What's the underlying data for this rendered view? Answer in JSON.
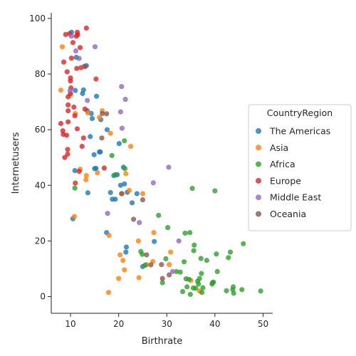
{
  "chart_data": {
    "type": "scatter",
    "xlabel": "Birthrate",
    "ylabel": "Internetusers",
    "xlim": [
      6,
      52
    ],
    "ylim": [
      -6,
      102
    ],
    "xticks": [
      10,
      20,
      30,
      40,
      50
    ],
    "yticks": [
      0,
      20,
      40,
      60,
      80,
      100
    ],
    "legend": {
      "title": "CountryRegion",
      "placement": "right"
    },
    "series": [
      {
        "name": "The Americas",
        "color": "#1f77b4",
        "points": [
          [
            10.2,
            95.0
          ],
          [
            10.5,
            28.0
          ],
          [
            10.9,
            45.3
          ],
          [
            11.2,
            86.0
          ],
          [
            11.0,
            74.1
          ],
          [
            12.5,
            73.0
          ],
          [
            12.7,
            74.3
          ],
          [
            13.3,
            83.0
          ],
          [
            13.5,
            66.8
          ],
          [
            13.6,
            37.3
          ],
          [
            14.1,
            57.5
          ],
          [
            14.3,
            65.8
          ],
          [
            14.5,
            64.0
          ],
          [
            14.9,
            51.0
          ],
          [
            15.0,
            46.0
          ],
          [
            15.3,
            46.1
          ],
          [
            15.4,
            72.0
          ],
          [
            16.0,
            52.0
          ],
          [
            16.2,
            52.0
          ],
          [
            16.3,
            63.6
          ],
          [
            17.5,
            23.0
          ],
          [
            17.6,
            60.0
          ],
          [
            18.3,
            37.4
          ],
          [
            18.7,
            35.0
          ],
          [
            19.0,
            43.5
          ],
          [
            19.3,
            35.0
          ],
          [
            19.7,
            43.8
          ],
          [
            20.1,
            55.0
          ],
          [
            20.4,
            40.0
          ],
          [
            21.0,
            46.5
          ],
          [
            21.2,
            40.5
          ],
          [
            21.5,
            16.0
          ],
          [
            21.6,
            17.8
          ],
          [
            21.8,
            37.5
          ],
          [
            22.8,
            33.7
          ],
          [
            23.8,
            37.0
          ],
          [
            25.0,
            10.8
          ],
          [
            27.4,
            19.8
          ]
        ]
      },
      {
        "name": "Asia",
        "color": "#ff7f0e",
        "points": [
          [
            8.0,
            74.2
          ],
          [
            8.3,
            89.8
          ],
          [
            10.0,
            72.5
          ],
          [
            10.8,
            28.8
          ],
          [
            11.0,
            65.8
          ],
          [
            12.0,
            45.8
          ],
          [
            13.2,
            42.0
          ],
          [
            13.3,
            43.5
          ],
          [
            13.6,
            66.0
          ],
          [
            15.6,
            44.5
          ],
          [
            16.0,
            64.4
          ],
          [
            16.6,
            66.8
          ],
          [
            17.9,
            1.5
          ],
          [
            18.0,
            22.0
          ],
          [
            18.3,
            58.7
          ],
          [
            20.0,
            6.5
          ],
          [
            20.3,
            15.0
          ],
          [
            20.7,
            37.0
          ],
          [
            20.9,
            13.0
          ],
          [
            21.2,
            9.6
          ],
          [
            21.5,
            44.2
          ],
          [
            22.2,
            38.2
          ],
          [
            22.5,
            54.0
          ],
          [
            24.1,
            20.0
          ],
          [
            24.2,
            6.8
          ],
          [
            25.0,
            37.0
          ],
          [
            25.8,
            11.5
          ],
          [
            27.1,
            12.6
          ],
          [
            27.3,
            23.0
          ],
          [
            30.5,
            11.5
          ],
          [
            30.8,
            16.0
          ],
          [
            35.0,
            5.8
          ],
          [
            36.8,
            2.0
          ]
        ]
      },
      {
        "name": "Africa",
        "color": "#2ca02c",
        "points": [
          [
            10.9,
            39.0
          ],
          [
            18.6,
            50.7
          ],
          [
            19.3,
            43.8
          ],
          [
            21.2,
            56.0
          ],
          [
            21.3,
            46.0
          ],
          [
            24.6,
            16.2
          ],
          [
            24.9,
            15.2
          ],
          [
            25.5,
            11.3
          ],
          [
            28.3,
            29.2
          ],
          [
            29.1,
            5.0
          ],
          [
            29.8,
            13.6
          ],
          [
            30.2,
            24.8
          ],
          [
            32.0,
            9.0
          ],
          [
            32.8,
            8.8
          ],
          [
            33.3,
            1.8
          ],
          [
            33.6,
            12.5
          ],
          [
            33.8,
            22.8
          ],
          [
            34.0,
            6.4
          ],
          [
            34.2,
            3.5
          ],
          [
            34.6,
            6.2
          ],
          [
            34.8,
            23.0
          ],
          [
            34.9,
            0.8
          ],
          [
            35.3,
            38.9
          ],
          [
            35.5,
            3.1
          ],
          [
            35.6,
            16.5
          ],
          [
            35.7,
            18.5
          ],
          [
            36.0,
            3.0
          ],
          [
            36.4,
            5.5
          ],
          [
            36.6,
            4.5
          ],
          [
            36.8,
            6.5
          ],
          [
            37.1,
            13.7
          ],
          [
            37.2,
            8.3
          ],
          [
            37.3,
            1.5
          ],
          [
            37.5,
            3.2
          ],
          [
            38.3,
            13.0
          ],
          [
            39.4,
            4.5
          ],
          [
            39.5,
            5.0
          ],
          [
            39.7,
            5.2
          ],
          [
            40.0,
            38.0
          ],
          [
            40.3,
            15.3
          ],
          [
            40.5,
            9.0
          ],
          [
            42.4,
            2.1
          ],
          [
            42.8,
            14.0
          ],
          [
            43.2,
            16.0
          ],
          [
            43.7,
            2.5
          ],
          [
            43.8,
            3.5
          ],
          [
            43.9,
            1.2
          ],
          [
            45.6,
            2.5
          ],
          [
            45.9,
            19.0
          ],
          [
            49.5,
            2.0
          ]
        ]
      },
      {
        "name": "Europe",
        "color": "#d62728",
        "points": [
          [
            8.0,
            62.2
          ],
          [
            8.4,
            59.6
          ],
          [
            8.5,
            58.3
          ],
          [
            8.6,
            84.3
          ],
          [
            8.8,
            50.0
          ],
          [
            9.0,
            94.2
          ],
          [
            9.2,
            58.0
          ],
          [
            9.3,
            80.8
          ],
          [
            9.4,
            52.9
          ],
          [
            9.4,
            51.2
          ],
          [
            9.5,
            68.9
          ],
          [
            9.5,
            66.8
          ],
          [
            9.5,
            62.8
          ],
          [
            9.5,
            71.8
          ],
          [
            9.8,
            94.5
          ],
          [
            10.0,
            73.0
          ],
          [
            10.0,
            78.6
          ],
          [
            10.0,
            77.5
          ],
          [
            10.1,
            75.0
          ],
          [
            10.2,
            85.7
          ],
          [
            10.5,
            91.3
          ],
          [
            10.7,
            68.1
          ],
          [
            10.9,
            65.0
          ],
          [
            11.0,
            40.8
          ],
          [
            11.2,
            93.6
          ],
          [
            11.3,
            82.0
          ],
          [
            11.4,
            95.0
          ],
          [
            11.4,
            60.3
          ],
          [
            11.5,
            94.1
          ],
          [
            11.8,
            45.0
          ],
          [
            12.0,
            89.5
          ],
          [
            12.2,
            82.3
          ],
          [
            12.4,
            54.0
          ],
          [
            12.7,
            57.0
          ],
          [
            13.0,
            67.4
          ],
          [
            13.3,
            96.5
          ],
          [
            15.3,
            78.2
          ],
          [
            17.0,
            46.2
          ]
        ]
      },
      {
        "name": "Middle East",
        "color": "#9467bd",
        "points": [
          [
            9.9,
            74.0
          ],
          [
            10.2,
            93.6
          ],
          [
            11.1,
            88.3
          ],
          [
            11.8,
            85.6
          ],
          [
            12.9,
            82.8
          ],
          [
            13.5,
            70.5
          ],
          [
            15.1,
            89.8
          ],
          [
            17.7,
            29.9
          ],
          [
            20.4,
            66.4
          ],
          [
            20.6,
            75.5
          ],
          [
            20.7,
            60.5
          ],
          [
            21.4,
            70.9
          ],
          [
            24.3,
            26.6
          ],
          [
            27.2,
            40.9
          ],
          [
            30.4,
            46.5
          ],
          [
            31.2,
            9.0
          ],
          [
            32.5,
            20.0
          ]
        ]
      },
      {
        "name": "Oceania",
        "color": "#8c564b",
        "points": [
          [
            13.0,
            82.7
          ],
          [
            16.5,
            57.0
          ],
          [
            16.6,
            65.8
          ],
          [
            17.5,
            65.7
          ],
          [
            20.6,
            37.0
          ],
          [
            23.1,
            27.8
          ],
          [
            25.0,
            34.8
          ],
          [
            25.8,
            15.0
          ],
          [
            26.7,
            11.4
          ],
          [
            28.9,
            11.5
          ],
          [
            29.1,
            6.5
          ],
          [
            30.5,
            7.8
          ]
        ]
      }
    ]
  }
}
